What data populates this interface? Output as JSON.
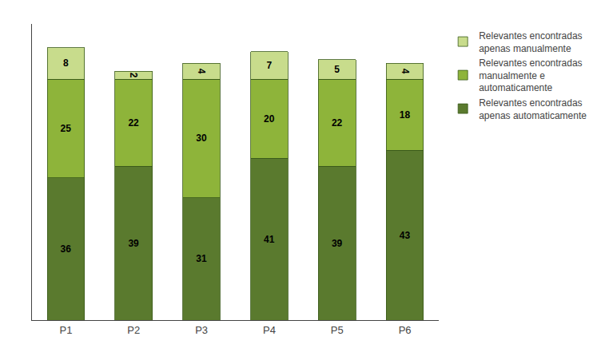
{
  "chart_data": {
    "type": "bar",
    "stacked": true,
    "categories": [
      "P1",
      "P2",
      "P3",
      "P4",
      "P5",
      "P6"
    ],
    "series": [
      {
        "name": "Relevantes encontradas\napenas automaticamente",
        "color": "#5a7a2e",
        "values": [
          36,
          39,
          31,
          41,
          39,
          43
        ]
      },
      {
        "name": "Relevantes encontradas\nmanualmente e\nautomaticamente",
        "color": "#8eb43a",
        "values": [
          25,
          22,
          30,
          20,
          22,
          18
        ]
      },
      {
        "name": "Relevantes encontradas\napenas manualmente",
        "color": "#c8dc8c",
        "values": [
          8,
          2,
          4,
          7,
          5,
          4
        ]
      }
    ],
    "ylim": [
      0,
      75
    ],
    "data_labels": true,
    "tick_labels": "x",
    "grid": false,
    "legend": "right"
  }
}
